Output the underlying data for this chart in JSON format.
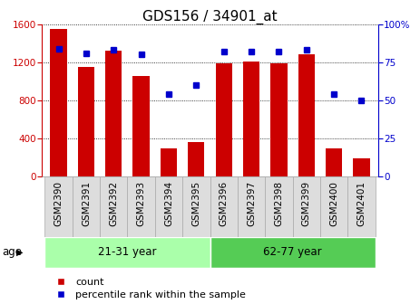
{
  "title": "GDS156 / 34901_at",
  "categories": [
    "GSM2390",
    "GSM2391",
    "GSM2392",
    "GSM2393",
    "GSM2394",
    "GSM2395",
    "GSM2396",
    "GSM2397",
    "GSM2398",
    "GSM2399",
    "GSM2400",
    "GSM2401"
  ],
  "counts": [
    1550,
    1155,
    1320,
    1060,
    290,
    360,
    1185,
    1205,
    1185,
    1280,
    290,
    190
  ],
  "percentiles": [
    84,
    81,
    83,
    80,
    54,
    60,
    82,
    82,
    82,
    83,
    54,
    50
  ],
  "ylim_left": [
    0,
    1600
  ],
  "ylim_right": [
    0,
    100
  ],
  "yticks_left": [
    0,
    400,
    800,
    1200,
    1600
  ],
  "yticks_right": [
    0,
    25,
    50,
    75,
    100
  ],
  "bar_color": "#cc0000",
  "dot_color": "#0000cc",
  "group1_label": "21-31 year",
  "group2_label": "62-77 year",
  "group1_indices": [
    0,
    1,
    2,
    3,
    4,
    5
  ],
  "group2_indices": [
    6,
    7,
    8,
    9,
    10,
    11
  ],
  "group1_color": "#aaffaa",
  "group2_color": "#55cc55",
  "age_label": "age",
  "legend_count": "count",
  "legend_percentile": "percentile rank within the sample",
  "background_color": "#ffffff",
  "right_axis_color": "#0000cc",
  "left_axis_color": "#cc0000",
  "title_fontsize": 11,
  "tick_fontsize": 7.5,
  "bar_width": 0.6,
  "xlabel_bg_color": "#dddddd"
}
